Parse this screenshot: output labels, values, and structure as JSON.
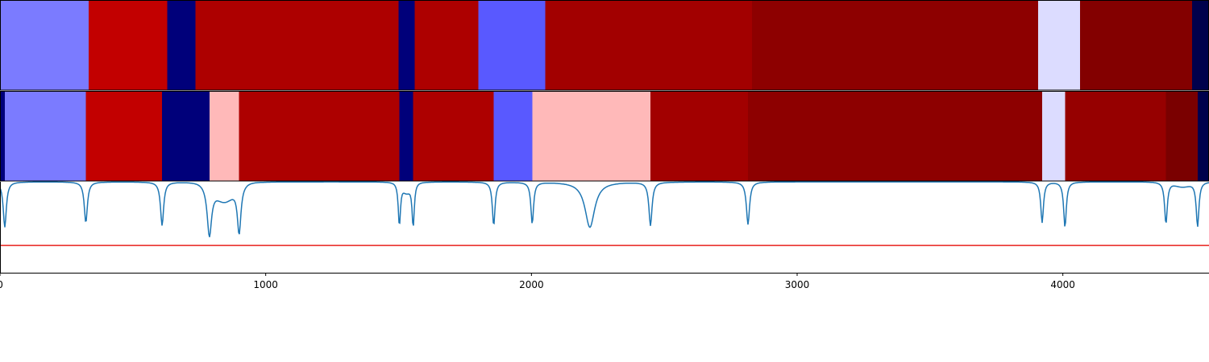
{
  "chart_data": {
    "type": "heatmap",
    "title": "",
    "xlabel": "",
    "ylabel": "",
    "xlim": [
      0,
      4550
    ],
    "x_ticks": [
      {
        "value": 0,
        "label": "0"
      },
      {
        "value": 1000,
        "label": "1000"
      },
      {
        "value": 2000,
        "label": "2000"
      },
      {
        "value": 3000,
        "label": "3000"
      },
      {
        "value": 4000,
        "label": "4000"
      }
    ],
    "colors": {
      "boundary_curve": "#1f77b4",
      "threshold_line": "#e8211c",
      "axes": "#000000"
    },
    "segment_bars": [
      {
        "segments": [
          {
            "start": 0,
            "end": 333,
            "color": "#7b7bff"
          },
          {
            "start": 333,
            "end": 630,
            "color": "#c20000"
          },
          {
            "start": 630,
            "end": 735,
            "color": "#00007a"
          },
          {
            "start": 735,
            "end": 1500,
            "color": "#ad0000"
          },
          {
            "start": 1500,
            "end": 1560,
            "color": "#00007a"
          },
          {
            "start": 1560,
            "end": 1800,
            "color": "#ad0000"
          },
          {
            "start": 1800,
            "end": 2052,
            "color": "#5959ff"
          },
          {
            "start": 2052,
            "end": 2830,
            "color": "#a20000"
          },
          {
            "start": 2830,
            "end": 3907,
            "color": "#8d0000"
          },
          {
            "start": 3907,
            "end": 4065,
            "color": "#dcdcff"
          },
          {
            "start": 4065,
            "end": 4487,
            "color": "#830000"
          },
          {
            "start": 4487,
            "end": 4550,
            "color": "#00004c"
          }
        ]
      },
      {
        "segments": [
          {
            "start": 0,
            "end": 18,
            "color": "#00007a"
          },
          {
            "start": 18,
            "end": 323,
            "color": "#7b7bff"
          },
          {
            "start": 323,
            "end": 610,
            "color": "#c20000"
          },
          {
            "start": 610,
            "end": 788,
            "color": "#00007a"
          },
          {
            "start": 788,
            "end": 900,
            "color": "#ffb9b9"
          },
          {
            "start": 900,
            "end": 1503,
            "color": "#ad0000"
          },
          {
            "start": 1503,
            "end": 1555,
            "color": "#00007a"
          },
          {
            "start": 1555,
            "end": 1858,
            "color": "#ad0000"
          },
          {
            "start": 1858,
            "end": 2003,
            "color": "#5959ff"
          },
          {
            "start": 2003,
            "end": 2448,
            "color": "#ffb9b9"
          },
          {
            "start": 2448,
            "end": 2815,
            "color": "#a20000"
          },
          {
            "start": 2815,
            "end": 3922,
            "color": "#8d0000"
          },
          {
            "start": 3922,
            "end": 4008,
            "color": "#dcdcff"
          },
          {
            "start": 4008,
            "end": 4388,
            "color": "#960000"
          },
          {
            "start": 4388,
            "end": 4507,
            "color": "#7a0000"
          },
          {
            "start": 4507,
            "end": 4550,
            "color": "#00004c"
          }
        ]
      }
    ],
    "curve": {
      "baseline": 1.0,
      "threshold": 0.3,
      "ylim": [
        0,
        1.0
      ],
      "dips": [
        {
          "x": 18,
          "depth": 0.5,
          "width": 7
        },
        {
          "x": 323,
          "depth": 0.45,
          "width": 7
        },
        {
          "x": 610,
          "depth": 0.48,
          "width": 7
        },
        {
          "x": 788,
          "depth": 0.55,
          "width": 10
        },
        {
          "x": 900,
          "depth": 0.52,
          "width": 8
        },
        {
          "x": 1503,
          "depth": 0.47,
          "width": 5
        },
        {
          "x": 1555,
          "depth": 0.48,
          "width": 5
        },
        {
          "x": 1858,
          "depth": 0.48,
          "width": 6
        },
        {
          "x": 2003,
          "depth": 0.46,
          "width": 6
        },
        {
          "x": 2220,
          "depth": 0.5,
          "width": 22
        },
        {
          "x": 2448,
          "depth": 0.48,
          "width": 7
        },
        {
          "x": 2815,
          "depth": 0.47,
          "width": 7
        },
        {
          "x": 3922,
          "depth": 0.45,
          "width": 6
        },
        {
          "x": 4008,
          "depth": 0.5,
          "width": 6
        },
        {
          "x": 4388,
          "depth": 0.46,
          "width": 6
        },
        {
          "x": 4507,
          "depth": 0.49,
          "width": 6
        }
      ],
      "broad_bumps": [
        {
          "x": 845,
          "depth": 0.2,
          "width": 50
        },
        {
          "x": 1530,
          "depth": 0.1,
          "width": 20
        },
        {
          "x": 4450,
          "depth": 0.05,
          "width": 40
        }
      ]
    }
  }
}
